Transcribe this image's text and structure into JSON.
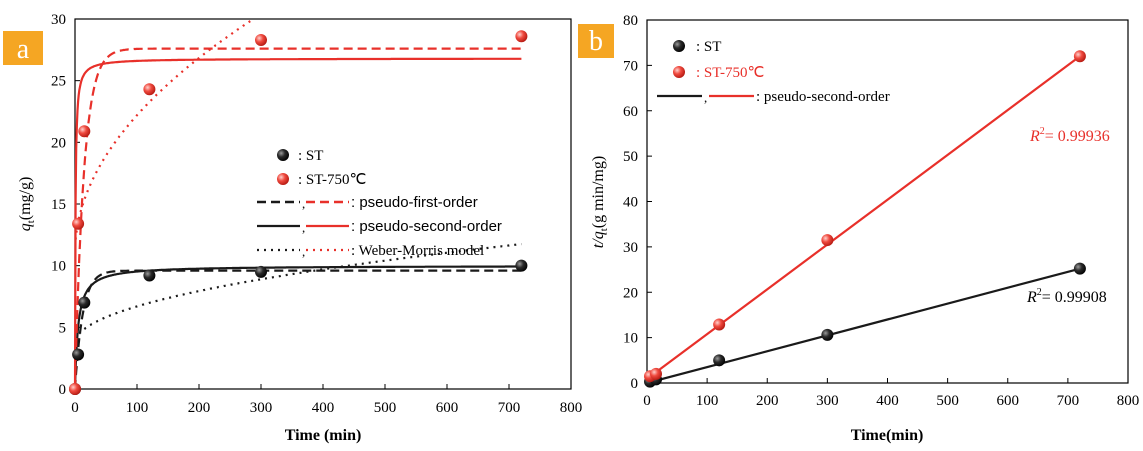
{
  "colors": {
    "st": "#1a1a1a",
    "st750": "#e8302a",
    "panel_label_bg": "#f5a623",
    "panel_label_text": "#ffffff"
  },
  "chart_data": [
    {
      "panel": "a",
      "type": "scatter",
      "xlabel": "Time (min)",
      "ylabel": "q_t(mg/g)",
      "xlim": [
        0,
        800
      ],
      "ylim": [
        0,
        30
      ],
      "xticks": [
        "0",
        "100",
        "200",
        "300",
        "400",
        "500",
        "600",
        "700",
        "800"
      ],
      "yticks": [
        "0",
        "5",
        "10",
        "15",
        "20",
        "25",
        "30"
      ],
      "grid": false,
      "legend_position": "center-right",
      "legend": {
        "st": ": ST",
        "st750": ": ST-750℃",
        "pfo": ": pseudo-first-order",
        "pso": ": pseudo-second-order",
        "wm": ": Weber-Morris model"
      },
      "series": [
        {
          "name": "ST",
          "color": "#1a1a1a",
          "x": [
            0,
            5,
            15,
            120,
            300,
            720
          ],
          "y": [
            0,
            2.8,
            7.0,
            9.2,
            9.5,
            10.0
          ]
        },
        {
          "name": "ST-750℃",
          "color": "#e8302a",
          "x": [
            0,
            5,
            15,
            120,
            300,
            720
          ],
          "y": [
            0,
            13.4,
            20.9,
            24.3,
            28.3,
            28.6
          ]
        }
      ],
      "fits": {
        "st": {
          "qe_pfo": 9.6,
          "k1_pfo": 0.08,
          "qe_pso": 10.0,
          "k2_pso": 0.02,
          "wm_k": 0.3,
          "wm_c": 3.7
        },
        "st750": {
          "qe_pfo": 27.6,
          "k1_pfo": 0.07,
          "qe_pso": 26.8,
          "k2_pso": 0.05,
          "wm_k": 1.12,
          "wm_c": 11.0
        }
      }
    },
    {
      "panel": "b",
      "type": "scatter",
      "xlabel": "Time(min)",
      "ylabel": "t/q_t(g min/mg)",
      "xlim": [
        0,
        800
      ],
      "ylim": [
        0,
        80
      ],
      "xticks": [
        "0",
        "100",
        "200",
        "300",
        "400",
        "500",
        "600",
        "700",
        "800"
      ],
      "yticks": [
        "0",
        "10",
        "20",
        "30",
        "40",
        "50",
        "60",
        "70",
        "80"
      ],
      "grid": false,
      "legend_position": "top-left",
      "legend": {
        "st": ": ST",
        "st750": ": ST-750℃",
        "pso": ": pseudo-second-order"
      },
      "series": [
        {
          "name": "ST",
          "color": "#1a1a1a",
          "x": [
            5,
            15,
            120,
            300,
            720
          ],
          "y": [
            0.3,
            0.8,
            5.0,
            10.6,
            25.2
          ]
        },
        {
          "name": "ST-750℃",
          "color": "#e8302a",
          "x": [
            5,
            15,
            120,
            300,
            720
          ],
          "y": [
            1.5,
            2.0,
            12.9,
            31.5,
            72.0
          ]
        }
      ],
      "fit_lines": [
        {
          "series": "ST",
          "x": [
            0,
            720
          ],
          "y": [
            0.0,
            25.2
          ]
        },
        {
          "series": "ST-750℃",
          "x": [
            0,
            720
          ],
          "y": [
            0.9,
            72.0
          ]
        }
      ],
      "annotations": [
        {
          "series": "ST-750℃",
          "label": "R",
          "sup": "2",
          "value": "= 0.99936"
        },
        {
          "series": "ST",
          "label": "R",
          "sup": "2",
          "value": "= 0.99908"
        }
      ]
    }
  ],
  "panel_labels": [
    "a",
    "b"
  ]
}
